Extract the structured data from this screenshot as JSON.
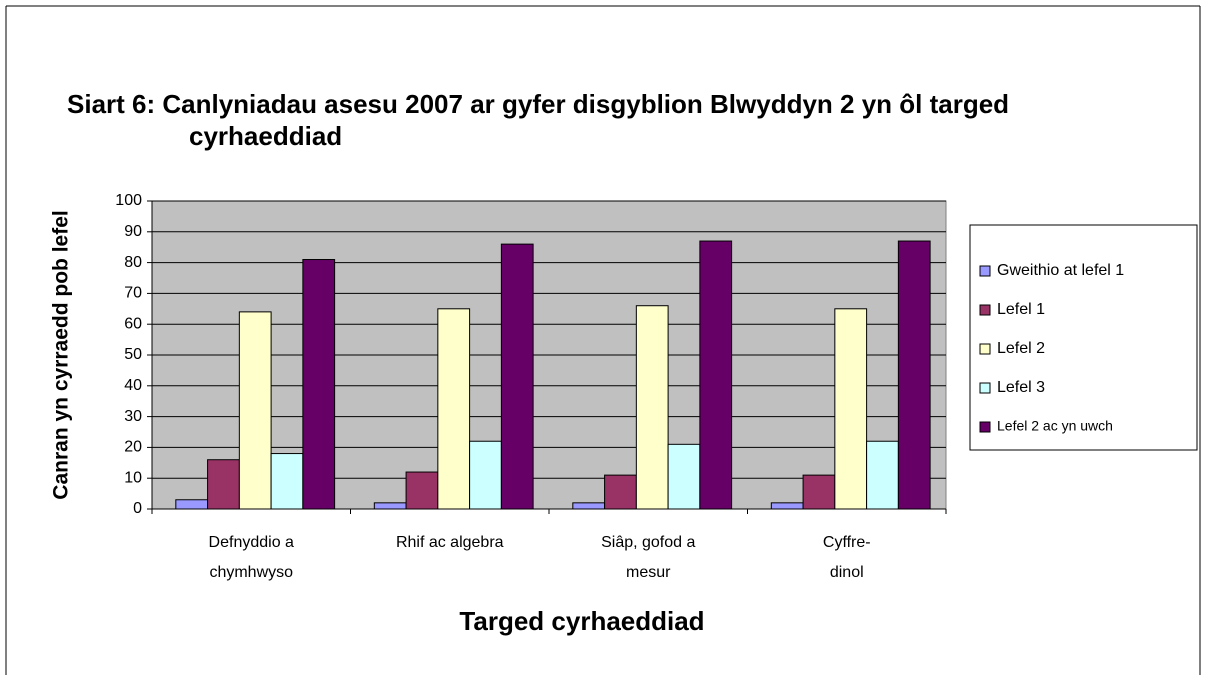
{
  "chart_data": {
    "type": "bar",
    "title": "Siart 6: Canlyniadau asesu 2007 ar gyfer disgyblion Blwyddyn 2 yn ôl targed cyrhaeddiad",
    "x_label": "Targed cyrhaeddiad",
    "y_label": "Canran yn cyrraedd pob lefel",
    "categories": [
      "Defnyddio a\nchymhwyso",
      "Rhif ac algebra",
      "Siâp, gofod a\nmesur",
      "Cyffre-\ndinol"
    ],
    "series": [
      {
        "name": "Gweithio at lefel 1",
        "color": "#9999ff",
        "values": [
          3,
          2,
          2,
          2
        ]
      },
      {
        "name": "Lefel 1",
        "color": "#993366",
        "values": [
          16,
          12,
          11,
          11
        ]
      },
      {
        "name": "Lefel 2",
        "color": "#ffffcc",
        "values": [
          64,
          65,
          66,
          65
        ]
      },
      {
        "name": "Lefel 3",
        "color": "#ccffff",
        "values": [
          18,
          22,
          21,
          22
        ]
      },
      {
        "name": "Lefel 2 ac yn uwch",
        "color": "#660066",
        "values": [
          81,
          86,
          87,
          87
        ]
      }
    ],
    "ylim": [
      0,
      100
    ],
    "yticks": [
      0,
      10,
      20,
      30,
      40,
      50,
      60,
      70,
      80,
      90,
      100
    ],
    "grid": true,
    "legend": "right",
    "plot_background": "#c0c0c0"
  }
}
